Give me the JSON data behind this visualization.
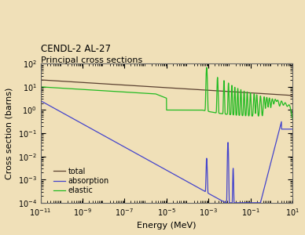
{
  "title_line1": "CENDL-2 AL-27",
  "title_line2": "Principal cross sections",
  "xlabel": "Energy (MeV)",
  "ylabel": "Cross section (barns)",
  "background_color": "#f0e0b8",
  "legend_entries": [
    "total",
    "absorption",
    "elastic"
  ],
  "legend_colors": [
    "#5a4030",
    "#4444cc",
    "#22bb22"
  ],
  "xlim": [
    -11,
    1
  ],
  "ylim": [
    -4,
    2
  ]
}
